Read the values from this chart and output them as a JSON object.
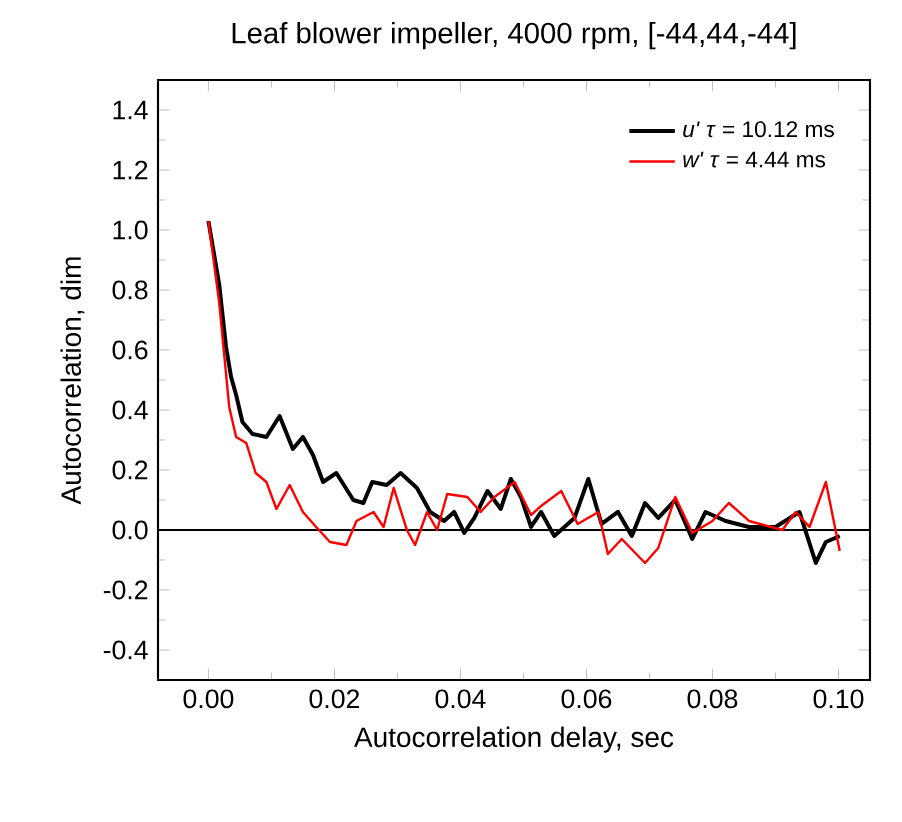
{
  "chart_data": {
    "type": "line",
    "title": "Leaf blower impeller, 4000 rpm, [-44,44,-44]",
    "xlabel": "Autocorrelation delay, sec",
    "ylabel": "Autocorrelation, dim",
    "xlim": [
      -0.008,
      0.105
    ],
    "ylim": [
      -0.5,
      1.5
    ],
    "xticks": [
      {
        "value": 0,
        "label": "0.00"
      },
      {
        "value": 0.02,
        "label": "0.02"
      },
      {
        "value": 0.04,
        "label": "0.04"
      },
      {
        "value": 0.06,
        "label": "0.06"
      },
      {
        "value": 0.08,
        "label": "0.08"
      },
      {
        "value": 0.1,
        "label": "0.10"
      }
    ],
    "yticks": [
      {
        "value": -0.4,
        "label": "-0.4"
      },
      {
        "value": -0.2,
        "label": "-0.2"
      },
      {
        "value": 0,
        "label": "0.0"
      },
      {
        "value": 0.2,
        "label": "0.2"
      },
      {
        "value": 0.4,
        "label": "0.4"
      },
      {
        "value": 0.6,
        "label": "0.6"
      },
      {
        "value": 0.8,
        "label": "0.8"
      },
      {
        "value": 1.0,
        "label": "1.0"
      },
      {
        "value": 1.2,
        "label": "1.2"
      },
      {
        "value": 1.4,
        "label": "1.4"
      }
    ],
    "grid": false,
    "legend": "top right",
    "marker": "none",
    "line_style": "solid",
    "ref_lines": [
      {
        "axis": "y",
        "value": 0,
        "color": "#000000"
      }
    ],
    "series": [
      {
        "name": "*u'* *τ* = 10.12 ms",
        "color": "#000000",
        "x": [
          0,
          0.0017,
          0.0028,
          0.0036,
          0.0044,
          0.0054,
          0.007,
          0.0092,
          0.0113,
          0.0134,
          0.015,
          0.0166,
          0.0182,
          0.0203,
          0.023,
          0.0246,
          0.026,
          0.0283,
          0.0305,
          0.0331,
          0.0352,
          0.0374,
          0.039,
          0.0406,
          0.0422,
          0.0443,
          0.0464,
          0.048,
          0.0496,
          0.0512,
          0.0528,
          0.0549,
          0.0581,
          0.0603,
          0.0624,
          0.065,
          0.0672,
          0.0693,
          0.0714,
          0.0741,
          0.0768,
          0.0789,
          0.0821,
          0.0858,
          0.09,
          0.0938,
          0.0964,
          0.098,
          0.1002
        ],
        "values": [
          1.03,
          0.82,
          0.61,
          0.51,
          0.45,
          0.36,
          0.32,
          0.31,
          0.38,
          0.27,
          0.31,
          0.25,
          0.16,
          0.19,
          0.1,
          0.09,
          0.16,
          0.15,
          0.19,
          0.14,
          0.06,
          0.03,
          0.06,
          -0.01,
          0.04,
          0.13,
          0.07,
          0.17,
          0.11,
          0.01,
          0.06,
          -0.02,
          0.04,
          0.17,
          0.02,
          0.06,
          -0.02,
          0.09,
          0.04,
          0.1,
          -0.03,
          0.06,
          0.03,
          0.01,
          0.01,
          0.06,
          -0.11,
          -0.04,
          -0.02
        ]
      },
      {
        "name": "*w'* *τ* = 4.44 ms",
        "color": "#ff0000",
        "x": [
          0,
          0.0017,
          0.0033,
          0.0044,
          0.006,
          0.0075,
          0.0092,
          0.0108,
          0.0129,
          0.015,
          0.0171,
          0.0193,
          0.0219,
          0.0235,
          0.0262,
          0.0278,
          0.0294,
          0.0315,
          0.0328,
          0.0347,
          0.0363,
          0.0379,
          0.0411,
          0.0432,
          0.0454,
          0.0486,
          0.0512,
          0.0528,
          0.056,
          0.0586,
          0.0619,
          0.0634,
          0.0656,
          0.0693,
          0.0714,
          0.0741,
          0.0768,
          0.08,
          0.0826,
          0.0858,
          0.0911,
          0.0932,
          0.0954,
          0.098,
          0.1002
        ],
        "values": [
          1.03,
          0.76,
          0.41,
          0.31,
          0.29,
          0.19,
          0.16,
          0.07,
          0.15,
          0.06,
          0.01,
          -0.04,
          -0.05,
          0.03,
          0.06,
          0.01,
          0.14,
          0,
          -0.05,
          0.06,
          0,
          0.12,
          0.11,
          0.06,
          0.11,
          0.16,
          0.05,
          0.08,
          0.13,
          0.02,
          0.06,
          -0.08,
          -0.03,
          -0.11,
          -0.06,
          0.11,
          -0.01,
          0.03,
          0.09,
          0.03,
          0,
          0.06,
          0.01,
          0.16,
          -0.07
        ]
      }
    ]
  }
}
